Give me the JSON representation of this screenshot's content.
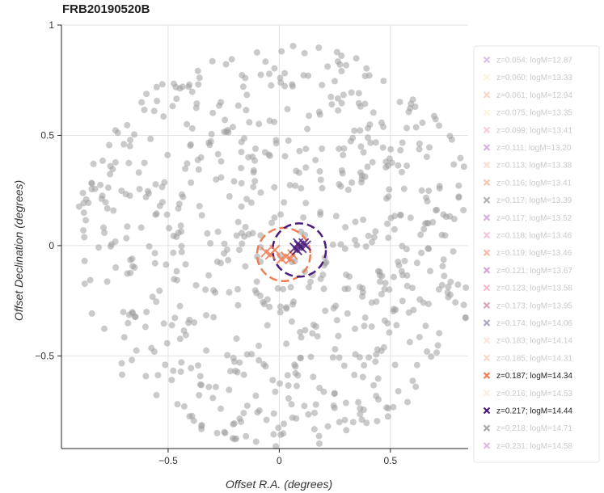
{
  "chart_data": {
    "type": "scatter",
    "title": "FRB20190520B",
    "xlabel": "Offset R.A. (degrees)",
    "ylabel": "Offset Declination (degrees)",
    "xlim": [
      -0.98,
      0.85
    ],
    "ylim": [
      -0.92,
      1.0
    ],
    "x_ticks": [
      -0.5,
      0,
      0.5
    ],
    "y_ticks": [
      -0.5,
      0,
      0.5,
      1
    ],
    "x_tick_labels": [
      "−0.5",
      "0",
      "0.5"
    ],
    "y_tick_labels": [
      "−0.5",
      "0",
      "0.5",
      "1"
    ],
    "grid": true,
    "legend_placement": "right",
    "background_points": {
      "color": "#9e9e9e",
      "field_radius_deg": 0.92,
      "approx_count": 700
    },
    "dashed_circles": [
      {
        "cx": 0.02,
        "cy": -0.04,
        "r": 0.12,
        "color": "#ef7d54"
      },
      {
        "cx": 0.09,
        "cy": -0.02,
        "r": 0.12,
        "color": "#4a1c7a"
      }
    ],
    "marker_groups": [
      {
        "color": "#ef7d54",
        "points": [
          [
            -0.06,
            -0.03
          ],
          [
            -0.02,
            -0.02
          ],
          [
            0.03,
            -0.05
          ],
          [
            0.05,
            -0.06
          ],
          [
            0.06,
            -0.04
          ],
          [
            0.01,
            -0.06
          ],
          [
            -0.04,
            -0.04
          ]
        ]
      },
      {
        "color": "#4a1c7a",
        "points": [
          [
            0.07,
            -0.01
          ],
          [
            0.09,
            0.0
          ],
          [
            0.1,
            -0.01
          ],
          [
            0.11,
            0.01
          ],
          [
            0.08,
            -0.02
          ],
          [
            0.12,
            0.0
          ],
          [
            0.085,
            0.01
          ]
        ]
      }
    ],
    "legend": [
      {
        "label": "z=0.054; logM=12.87",
        "color": "#b07cc6",
        "active": false
      },
      {
        "label": "z=0.060; logM=13.33",
        "color": "#f7e9a6",
        "active": false
      },
      {
        "label": "z=0.061; logM=12.94",
        "color": "#f4a582",
        "active": false
      },
      {
        "label": "z=0.075; logM=13.35",
        "color": "#fce6b3",
        "active": false
      },
      {
        "label": "z=0.099; logM=13.41",
        "color": "#e89aaa",
        "active": false
      },
      {
        "label": "z=0.111; logM=13.20",
        "color": "#a25bb5",
        "active": false
      },
      {
        "label": "z=0.113; logM=13.38",
        "color": "#f6b89c",
        "active": false
      },
      {
        "label": "z=0.116; logM=13.41",
        "color": "#ef7d54",
        "active": false
      },
      {
        "label": "z=0.117; logM=13.39",
        "color": "#555555",
        "active": false
      },
      {
        "label": "z=0.117; logM=13.52",
        "color": "#a259b3",
        "active": false
      },
      {
        "label": "z=0.118; logM=13.46",
        "color": "#e07fb5",
        "active": false
      },
      {
        "label": "z=0.119; logM=13.46",
        "color": "#ef6a4d",
        "active": false
      },
      {
        "label": "z=0.121; logM=13.67",
        "color": "#9b3e9f",
        "active": false
      },
      {
        "label": "z=0.123; logM=13.58",
        "color": "#ea6a86",
        "active": false
      },
      {
        "label": "z=0.173; logM=13.95",
        "color": "#b03a70",
        "active": false
      },
      {
        "label": "z=0.174; logM=14.06",
        "color": "#4c3a7a",
        "active": false
      },
      {
        "label": "z=0.183; logM=14.14",
        "color": "#f8c9ac",
        "active": false
      },
      {
        "label": "z=0.185; logM=14.31",
        "color": "#f5a882",
        "active": false
      },
      {
        "label": "z=0.187; logM=14.34",
        "color": "#ef7d54",
        "active": true
      },
      {
        "label": "z=0.216; logM=14.53",
        "color": "#fad8c0",
        "active": false
      },
      {
        "label": "z=0.217; logM=14.44",
        "color": "#4a1c7a",
        "active": true
      },
      {
        "label": "z=0.218; logM=14.71",
        "color": "#444444",
        "active": false
      },
      {
        "label": "z=0.231; logM=14.58",
        "color": "#b86fc4",
        "active": false
      }
    ]
  }
}
